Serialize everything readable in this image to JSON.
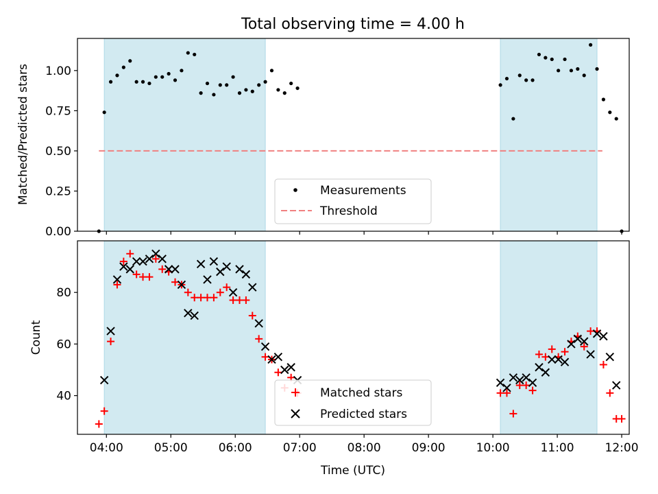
{
  "chart_data": {
    "type": "scatter",
    "title": "Total observing time = 4.00 h",
    "xlabel": "Time (UTC)",
    "xlim": [
      "03:33",
      "12:07"
    ],
    "x_ticks": [
      "04:00",
      "05:00",
      "06:00",
      "07:00",
      "08:00",
      "09:00",
      "10:00",
      "11:00",
      "12:00"
    ],
    "shaded_intervals": [
      [
        "03:58",
        "06:28"
      ],
      [
        "10:07",
        "11:37"
      ]
    ],
    "shade_color": "#add8e6",
    "top_panel": {
      "ylabel": "Matched/Predicted stars",
      "ylim": [
        0,
        1.2
      ],
      "y_ticks": [
        "0.00",
        "0.25",
        "0.50",
        "0.75",
        "1.00"
      ],
      "legend": {
        "position": "lower-center",
        "entries": [
          "Measurements",
          "Threshold"
        ]
      },
      "threshold": {
        "name": "Threshold",
        "value": 0.5,
        "x_range": [
          "03:53",
          "11:42"
        ],
        "color": "#f08080",
        "style": "dashed"
      },
      "series": [
        {
          "name": "Measurements",
          "marker": "dot",
          "color": "#000000",
          "points": [
            [
              "03:53",
              0.0
            ],
            [
              "03:58",
              0.74
            ],
            [
              "04:04",
              0.93
            ],
            [
              "04:10",
              0.97
            ],
            [
              "04:16",
              1.02
            ],
            [
              "04:22",
              1.06
            ],
            [
              "04:28",
              0.93
            ],
            [
              "04:34",
              0.93
            ],
            [
              "04:40",
              0.92
            ],
            [
              "04:46",
              0.96
            ],
            [
              "04:52",
              0.96
            ],
            [
              "04:58",
              0.98
            ],
            [
              "05:04",
              0.94
            ],
            [
              "05:10",
              1.0
            ],
            [
              "05:16",
              1.11
            ],
            [
              "05:22",
              1.1
            ],
            [
              "05:28",
              0.86
            ],
            [
              "05:34",
              0.92
            ],
            [
              "05:40",
              0.85
            ],
            [
              "05:46",
              0.91
            ],
            [
              "05:52",
              0.91
            ],
            [
              "05:58",
              0.96
            ],
            [
              "06:04",
              0.86
            ],
            [
              "06:10",
              0.88
            ],
            [
              "06:16",
              0.87
            ],
            [
              "06:22",
              0.91
            ],
            [
              "06:28",
              0.93
            ],
            [
              "06:34",
              1.0
            ],
            [
              "06:40",
              0.88
            ],
            [
              "06:46",
              0.86
            ],
            [
              "06:52",
              0.92
            ],
            [
              "06:58",
              0.89
            ],
            [
              "10:07",
              0.91
            ],
            [
              "10:13",
              0.95
            ],
            [
              "10:19",
              0.7
            ],
            [
              "10:25",
              0.97
            ],
            [
              "10:31",
              0.94
            ],
            [
              "10:37",
              0.94
            ],
            [
              "10:43",
              1.1
            ],
            [
              "10:49",
              1.08
            ],
            [
              "10:55",
              1.07
            ],
            [
              "11:01",
              1.0
            ],
            [
              "11:07",
              1.07
            ],
            [
              "11:13",
              1.0
            ],
            [
              "11:19",
              1.01
            ],
            [
              "11:25",
              0.97
            ],
            [
              "11:31",
              1.16
            ],
            [
              "11:37",
              1.01
            ],
            [
              "11:43",
              0.82
            ],
            [
              "11:49",
              0.74
            ],
            [
              "11:55",
              0.7
            ],
            [
              "12:00",
              0.0
            ]
          ]
        }
      ]
    },
    "bottom_panel": {
      "ylabel": "Count",
      "ylim": [
        25,
        100
      ],
      "y_ticks": [
        "40",
        "60",
        "80"
      ],
      "legend": {
        "position": "lower-center",
        "entries": [
          "Matched stars",
          "Predicted stars"
        ]
      },
      "series": [
        {
          "name": "Matched stars",
          "marker": "plus",
          "color": "#ff0000",
          "points": [
            [
              "03:53",
              29
            ],
            [
              "03:58",
              34
            ],
            [
              "04:04",
              61
            ],
            [
              "04:10",
              83
            ],
            [
              "04:16",
              92
            ],
            [
              "04:22",
              95
            ],
            [
              "04:28",
              87
            ],
            [
              "04:34",
              86
            ],
            [
              "04:40",
              86
            ],
            [
              "04:46",
              93
            ],
            [
              "04:52",
              89
            ],
            [
              "04:58",
              88
            ],
            [
              "05:04",
              84
            ],
            [
              "05:10",
              83
            ],
            [
              "05:16",
              80
            ],
            [
              "05:22",
              78
            ],
            [
              "05:28",
              78
            ],
            [
              "05:34",
              78
            ],
            [
              "05:40",
              78
            ],
            [
              "05:46",
              80
            ],
            [
              "05:52",
              82
            ],
            [
              "05:58",
              77
            ],
            [
              "06:04",
              77
            ],
            [
              "06:10",
              77
            ],
            [
              "06:16",
              71
            ],
            [
              "06:22",
              62
            ],
            [
              "06:28",
              55
            ],
            [
              "06:34",
              54
            ],
            [
              "06:40",
              49
            ],
            [
              "06:46",
              43
            ],
            [
              "06:52",
              47
            ],
            [
              "06:58",
              41
            ],
            [
              "10:07",
              41
            ],
            [
              "10:13",
              41
            ],
            [
              "10:19",
              33
            ],
            [
              "10:25",
              44
            ],
            [
              "10:31",
              44
            ],
            [
              "10:37",
              42
            ],
            [
              "10:43",
              56
            ],
            [
              "10:49",
              55
            ],
            [
              "10:55",
              58
            ],
            [
              "11:01",
              55
            ],
            [
              "11:07",
              57
            ],
            [
              "11:13",
              61
            ],
            [
              "11:19",
              63
            ],
            [
              "11:25",
              59
            ],
            [
              "11:31",
              65
            ],
            [
              "11:37",
              65
            ],
            [
              "11:43",
              52
            ],
            [
              "11:49",
              41
            ],
            [
              "11:55",
              31
            ],
            [
              "12:00",
              31
            ]
          ]
        },
        {
          "name": "Predicted stars",
          "marker": "x",
          "color": "#000000",
          "points": [
            [
              "03:58",
              46
            ],
            [
              "04:04",
              65
            ],
            [
              "04:10",
              85
            ],
            [
              "04:16",
              90
            ],
            [
              "04:22",
              89
            ],
            [
              "04:28",
              92
            ],
            [
              "04:34",
              92
            ],
            [
              "04:40",
              93
            ],
            [
              "04:46",
              95
            ],
            [
              "04:52",
              93
            ],
            [
              "04:58",
              89
            ],
            [
              "05:04",
              89
            ],
            [
              "05:10",
              83
            ],
            [
              "05:16",
              72
            ],
            [
              "05:22",
              71
            ],
            [
              "05:28",
              91
            ],
            [
              "05:34",
              85
            ],
            [
              "05:40",
              92
            ],
            [
              "05:46",
              88
            ],
            [
              "05:52",
              90
            ],
            [
              "05:58",
              80
            ],
            [
              "06:04",
              89
            ],
            [
              "06:10",
              87
            ],
            [
              "06:16",
              82
            ],
            [
              "06:22",
              68
            ],
            [
              "06:28",
              59
            ],
            [
              "06:34",
              54
            ],
            [
              "06:40",
              55
            ],
            [
              "06:46",
              50
            ],
            [
              "06:52",
              51
            ],
            [
              "06:58",
              46
            ],
            [
              "10:07",
              45
            ],
            [
              "10:13",
              43
            ],
            [
              "10:19",
              47
            ],
            [
              "10:25",
              46
            ],
            [
              "10:31",
              47
            ],
            [
              "10:37",
              45
            ],
            [
              "10:43",
              51
            ],
            [
              "10:49",
              49
            ],
            [
              "10:55",
              54
            ],
            [
              "11:01",
              54
            ],
            [
              "11:07",
              53
            ],
            [
              "11:13",
              60
            ],
            [
              "11:19",
              62
            ],
            [
              "11:25",
              61
            ],
            [
              "11:31",
              56
            ],
            [
              "11:37",
              64
            ],
            [
              "11:43",
              63
            ],
            [
              "11:49",
              55
            ],
            [
              "11:55",
              44
            ]
          ]
        }
      ]
    }
  }
}
